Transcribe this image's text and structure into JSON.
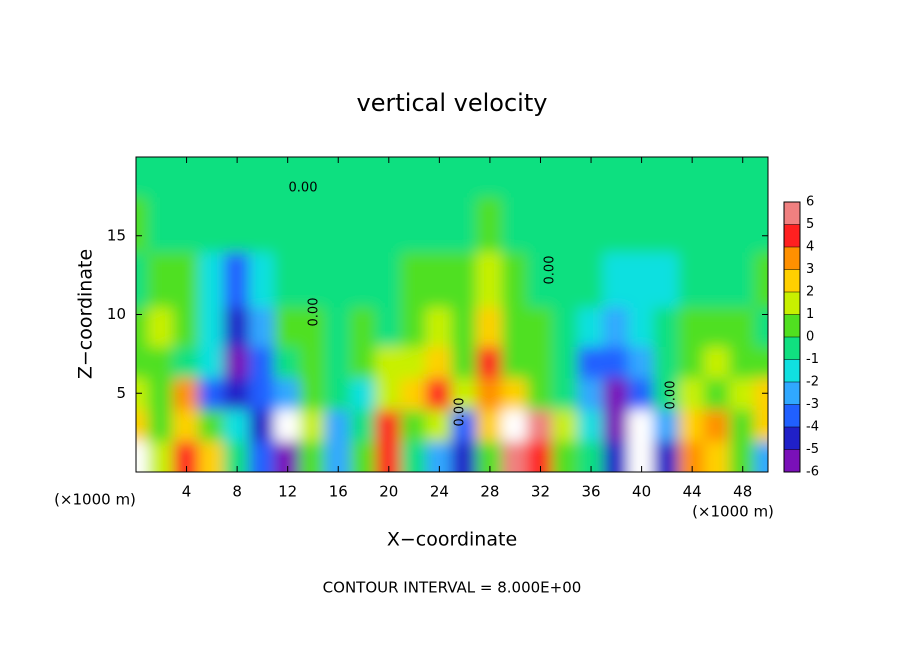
{
  "chart_data": {
    "type": "contour",
    "title": "vertical velocity",
    "x_label": "X−coordinate",
    "y_label": "Z−coordinate",
    "x_unit": "(×1000 m)",
    "footer": "CONTOUR INTERVAL = 8.000E+00",
    "annotations": [
      "0.00",
      "0.00",
      "0.00",
      "0.00",
      "0.00"
    ],
    "xlim": [
      0,
      50
    ],
    "ylim": [
      0,
      20
    ],
    "xticks": [
      4,
      8,
      12,
      16,
      20,
      24,
      28,
      32,
      36,
      40,
      44,
      48
    ],
    "yticks": [
      5,
      10,
      15
    ],
    "x": [
      0,
      2,
      4,
      6,
      8,
      10,
      12,
      14,
      16,
      18,
      20,
      22,
      24,
      26,
      28,
      30,
      32,
      34,
      36,
      38,
      40,
      42,
      44,
      46,
      48,
      50
    ],
    "z": [
      1,
      3,
      5,
      7,
      9,
      12,
      16,
      19
    ],
    "values": [
      [
        -7,
        2,
        5,
        3,
        0,
        -3,
        -5,
        1,
        -2,
        1,
        5,
        0,
        -2,
        -4,
        1,
        6,
        5,
        1,
        0,
        -4,
        -7,
        -4,
        4,
        3,
        1,
        -2
      ],
      [
        3,
        1,
        3,
        1,
        -1,
        -4,
        -7,
        2,
        -2,
        0,
        5,
        1,
        2,
        -3,
        3,
        7,
        6,
        2,
        -1,
        -5,
        -7,
        -2,
        3,
        4,
        1,
        3
      ],
      [
        2,
        1,
        4,
        -3,
        -4,
        -3,
        -2,
        1,
        0,
        -1,
        2,
        3,
        5,
        2,
        4,
        3,
        1,
        0,
        -2,
        -5,
        -3,
        0,
        2,
        1,
        2,
        3
      ],
      [
        1,
        1,
        0,
        -1,
        -5,
        -3,
        0,
        1,
        0,
        1,
        2,
        2,
        3,
        1,
        5,
        1,
        1,
        0,
        -3,
        -3,
        -2,
        0,
        1,
        2,
        1,
        1
      ],
      [
        1,
        2,
        1,
        -1,
        -4,
        -2,
        1,
        1,
        0,
        1,
        0,
        1,
        2,
        1,
        3,
        1,
        1,
        0,
        -1,
        -2,
        -1,
        0,
        1,
        1,
        1,
        0
      ],
      [
        0,
        1,
        1,
        -1,
        -3,
        -1,
        0,
        0,
        0,
        0,
        0,
        1,
        1,
        1,
        2,
        1,
        0,
        0,
        0,
        -1,
        -1,
        -1,
        0,
        0,
        0,
        1
      ],
      [
        1,
        0,
        0,
        0,
        0,
        0,
        0,
        0,
        0,
        0,
        0,
        0,
        0,
        0,
        1,
        0,
        0,
        0,
        0,
        0,
        0,
        0,
        0,
        0,
        0,
        0
      ],
      [
        0,
        0,
        0,
        0,
        0,
        0,
        0,
        0,
        0,
        0,
        0,
        0,
        0,
        0,
        0,
        0,
        0,
        0,
        0,
        0,
        0,
        0,
        0,
        0,
        0,
        0
      ]
    ],
    "colorbar": {
      "levels": [
        -6,
        -5,
        -4,
        -3,
        -2,
        -1,
        0,
        1,
        2,
        3,
        4,
        5,
        6
      ],
      "colors": [
        "#7a10b8",
        "#2020c8",
        "#2060ff",
        "#30a8ff",
        "#10e0e0",
        "#10e080",
        "#50e020",
        "#c8f000",
        "#ffd000",
        "#ff9000",
        "#ff2020",
        "#f08080"
      ]
    }
  }
}
